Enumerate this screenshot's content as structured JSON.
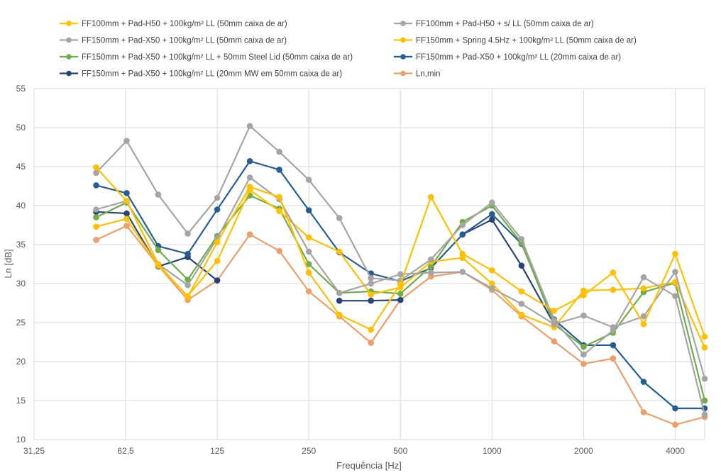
{
  "chart_data": {
    "type": "line",
    "xlabel": "Frequência [Hz]",
    "ylabel": "Ln [dB]",
    "x_scale": "log2",
    "xlim": [
      31.25,
      5000
    ],
    "ylim": [
      10,
      55
    ],
    "x_ticks": [
      31.25,
      62.5,
      125,
      250,
      500,
      1000,
      2000,
      4000
    ],
    "x_tick_labels": [
      "31,25",
      "62,5",
      "125",
      "250",
      "500",
      "1000",
      "2000",
      "4000"
    ],
    "y_ticks": [
      10,
      15,
      20,
      25,
      30,
      35,
      40,
      45,
      50,
      55
    ],
    "grid": true,
    "legend_position": "top",
    "x": [
      50,
      63,
      80,
      100,
      125,
      160,
      200,
      250,
      315,
      400,
      500,
      630,
      800,
      1000,
      1250,
      1600,
      2000,
      2500,
      3150,
      4000,
      5000
    ],
    "series": [
      {
        "name": "FF100mm + Pad-H50 + 100kg/m² LL  (50mm caixa de ar)",
        "color": "#FFC000",
        "values": [
          44.9,
          40.6,
          32.5,
          28.3,
          35.3,
          42.4,
          41.1,
          31.4,
          26.0,
          24.1,
          29.9,
          41.1,
          33.8,
          31.7,
          29.0,
          26.5,
          28.5,
          31.4,
          24.8,
          33.8,
          23.2
        ]
      },
      {
        "name": "FF100mm + Pad-H50 + s/ LL  (50mm caixa de ar)",
        "color": "#A5A5A5",
        "values": [
          39.5,
          40.6,
          32.5,
          29.8,
          35.8,
          43.6,
          40.8,
          34.1,
          28.8,
          30.0,
          31.2,
          31.4,
          31.5,
          29.4,
          27.4,
          24.8,
          25.9,
          24.4,
          25.8,
          31.5,
          17.8
        ]
      },
      {
        "name": "FF150mm + Pad-X50 + 100kg/m² LL  (50mm caixa de ar)",
        "color": "#A5A5A5",
        "values": [
          44.2,
          48.3,
          41.4,
          36.4,
          41.0,
          50.2,
          46.9,
          43.3,
          38.4,
          30.7,
          30.4,
          33.1,
          37.5,
          40.4,
          35.7,
          25.3,
          20.9,
          24.0,
          30.8,
          28.4,
          13.2
        ]
      },
      {
        "name": "FF150mm + Spring 4.5Hz + 100kg/m² LL (50mm caixa de ar)",
        "color": "#FFC000",
        "values": [
          37.3,
          38.3,
          32.3,
          28.4,
          32.9,
          42.0,
          39.3,
          35.9,
          34.1,
          28.6,
          29.5,
          32.8,
          33.3,
          30.0,
          26.0,
          24.4,
          29.1,
          29.2,
          29.4,
          30.2,
          21.8
        ]
      },
      {
        "name": "FF150mm + Pad-X50 + 100kg/m² LL + 50mm Steel Lid  (50mm caixa de ar)",
        "color": "#70AD47",
        "values": [
          38.5,
          40.4,
          34.3,
          30.5,
          36.1,
          41.3,
          39.6,
          32.5,
          28.8,
          29.0,
          28.7,
          32.2,
          37.9,
          40.0,
          35.2,
          24.8,
          21.9,
          23.7,
          28.9,
          30.1,
          15.0
        ]
      },
      {
        "name": "FF150mm + Pad-X50 + 100kg/m² LL (20mm caixa de ar)",
        "color": "#255E91",
        "values": [
          42.6,
          41.6,
          34.8,
          33.8,
          39.5,
          45.7,
          44.6,
          39.4,
          34.0,
          31.3,
          30.3,
          32.0,
          36.3,
          38.9,
          35.1,
          25.4,
          22.1,
          22.1,
          17.4,
          14.0,
          14.0
        ]
      },
      {
        "name": "FF150mm + Pad-X50 + 100kg/m² LL (20mm MW em 50mm caixa de ar)",
        "color": "#264478",
        "values": [
          39.2,
          39.0,
          32.2,
          33.4,
          30.4,
          null,
          null,
          null,
          27.8,
          27.8,
          27.9,
          null,
          36.3,
          38.2,
          32.3,
          24.8,
          null,
          null,
          null,
          null,
          null
        ]
      },
      {
        "name": "Ln,min",
        "color": "#ED9E6A",
        "values": [
          35.6,
          37.4,
          32.3,
          27.9,
          30.4,
          36.3,
          34.2,
          29.0,
          25.8,
          22.4,
          27.9,
          30.9,
          31.5,
          29.2,
          25.8,
          22.6,
          19.7,
          20.4,
          13.5,
          11.9,
          12.9
        ]
      }
    ]
  }
}
